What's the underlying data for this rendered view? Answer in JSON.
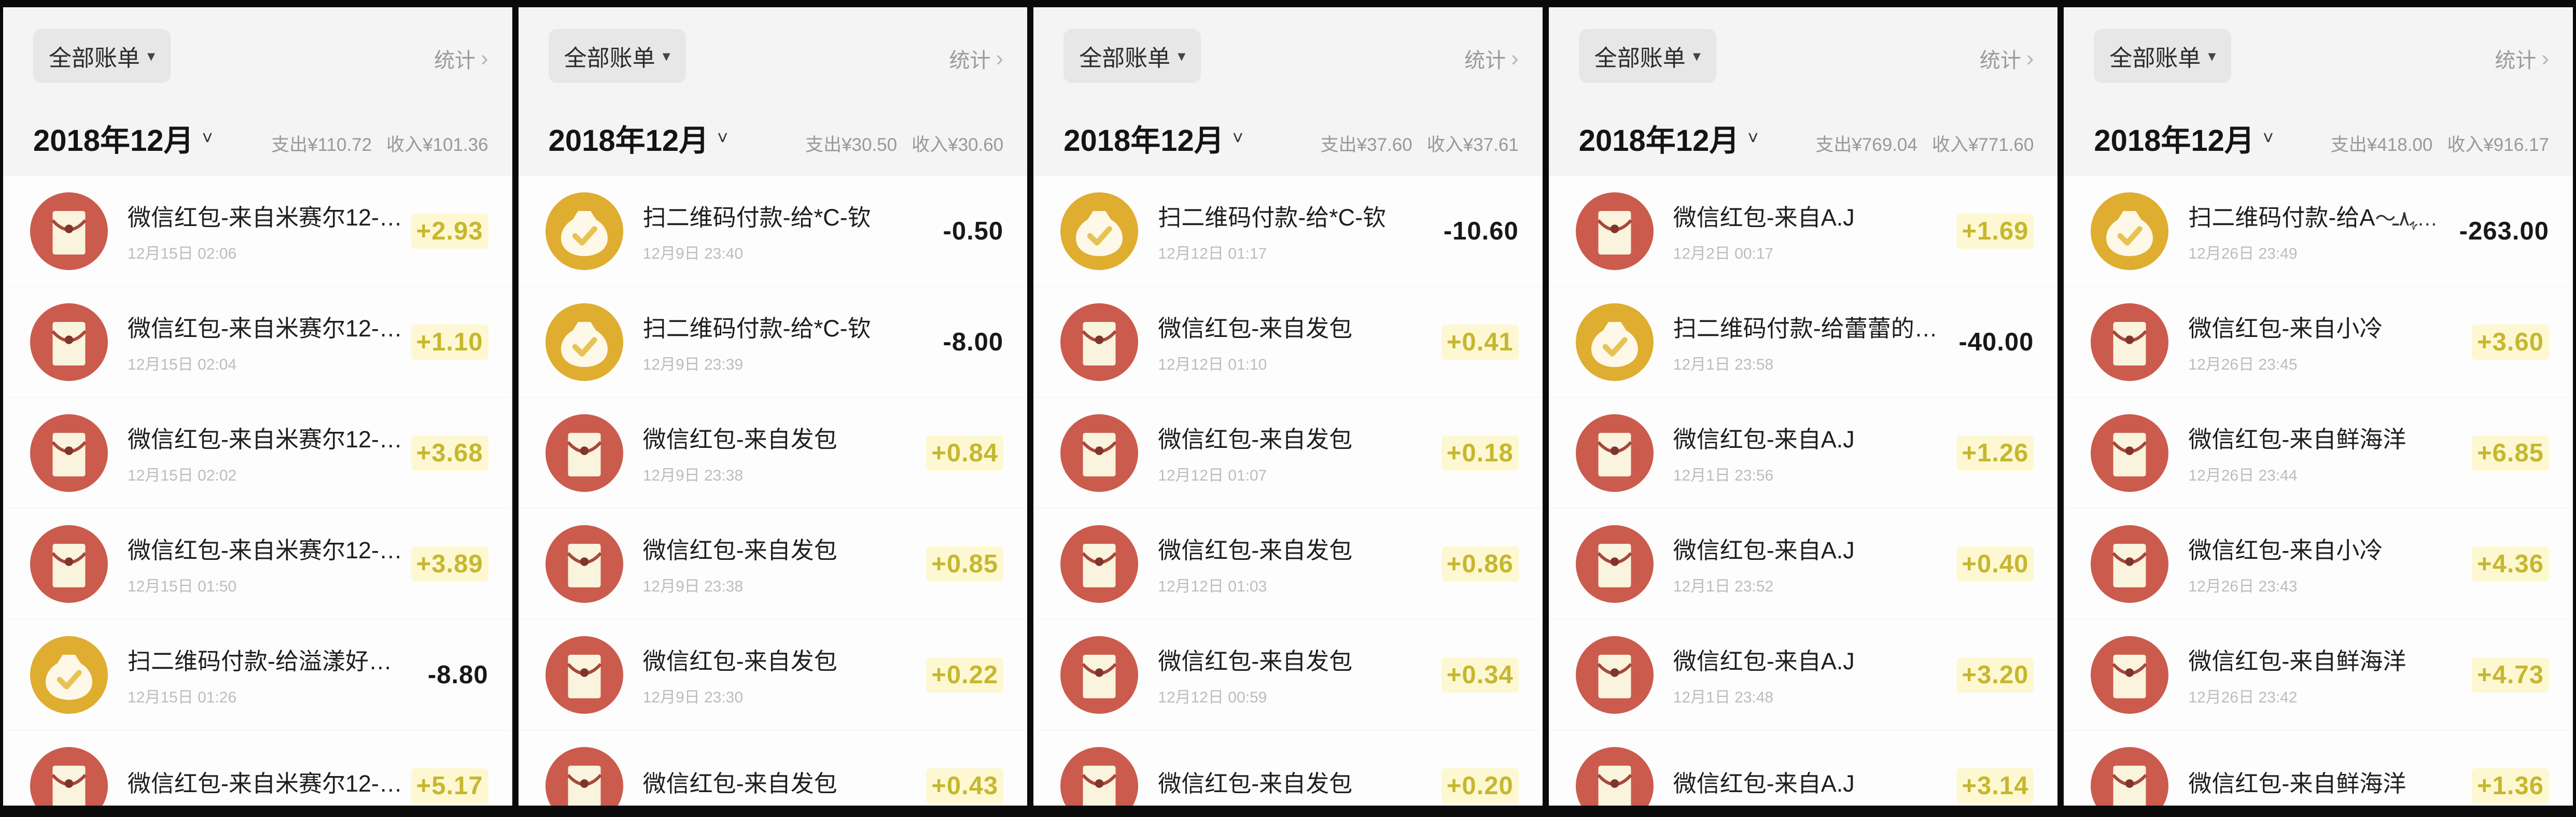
{
  "labels": {
    "filter": "全部账单",
    "filter_caret": "▾",
    "stats": "统计",
    "stats_chevron": "›",
    "month": "2018年12月",
    "month_caret": "˅"
  },
  "colors": {
    "income_amount": "#c6b72f",
    "expense_amount": "#181818",
    "red_envelope_icon": "#cb5b4d",
    "money_bag_icon": "#dfad2f",
    "frame": "#0a0a0a"
  },
  "panels": [
    {
      "expense": "支出¥110.72",
      "income": "收入¥101.36",
      "rows": [
        {
          "icon": "red",
          "title": "微信红包-来自米赛尔12-…",
          "date": "12月15日 02:06",
          "amount": "+2.93"
        },
        {
          "icon": "red",
          "title": "微信红包-来自米赛尔12-…",
          "date": "12月15日 02:04",
          "amount": "+1.10"
        },
        {
          "icon": "red",
          "title": "微信红包-来自米赛尔12-…",
          "date": "12月15日 02:02",
          "amount": "+3.68"
        },
        {
          "icon": "red",
          "title": "微信红包-来自米赛尔12-…",
          "date": "12月15日 01:50",
          "amount": "+3.89"
        },
        {
          "icon": "bag",
          "title": "扫二维码付款-给溢漾好…",
          "date": "12月15日 01:26",
          "amount": "-8.80"
        },
        {
          "icon": "red",
          "title": "微信红包-来自米赛尔12-…",
          "date": "",
          "amount": "+5.17"
        }
      ]
    },
    {
      "expense": "支出¥30.50",
      "income": "收入¥30.60",
      "rows": [
        {
          "icon": "bag",
          "title": "扫二维码付款-给*C-钦",
          "date": "12月9日 23:40",
          "amount": "-0.50"
        },
        {
          "icon": "bag",
          "title": "扫二维码付款-给*C-钦",
          "date": "12月9日 23:39",
          "amount": "-8.00"
        },
        {
          "icon": "red",
          "title": "微信红包-来自发包",
          "date": "12月9日 23:38",
          "amount": "+0.84"
        },
        {
          "icon": "red",
          "title": "微信红包-来自发包",
          "date": "12月9日 23:38",
          "amount": "+0.85"
        },
        {
          "icon": "red",
          "title": "微信红包-来自发包",
          "date": "12月9日 23:30",
          "amount": "+0.22"
        },
        {
          "icon": "red",
          "title": "微信红包-来自发包",
          "date": "",
          "amount": "+0.43"
        }
      ]
    },
    {
      "expense": "支出¥37.60",
      "income": "收入¥37.61",
      "rows": [
        {
          "icon": "bag",
          "title": "扫二维码付款-给*C-钦",
          "date": "12月12日 01:17",
          "amount": "-10.60"
        },
        {
          "icon": "red",
          "title": "微信红包-来自发包",
          "date": "12月12日 01:10",
          "amount": "+0.41"
        },
        {
          "icon": "red",
          "title": "微信红包-来自发包",
          "date": "12月12日 01:07",
          "amount": "+0.18"
        },
        {
          "icon": "red",
          "title": "微信红包-来自发包",
          "date": "12月12日 01:03",
          "amount": "+0.86"
        },
        {
          "icon": "red",
          "title": "微信红包-来自发包",
          "date": "12月12日 00:59",
          "amount": "+0.34"
        },
        {
          "icon": "red",
          "title": "微信红包-来自发包",
          "date": "",
          "amount": "+0.20"
        }
      ]
    },
    {
      "expense": "支出¥769.04",
      "income": "收入¥771.60",
      "rows": [
        {
          "icon": "red",
          "title": "微信红包-来自A.J",
          "date": "12月2日 00:17",
          "amount": "+1.69"
        },
        {
          "icon": "bag",
          "title": "扫二维码付款-给蕾蕾的…",
          "date": "12月1日 23:58",
          "amount": "-40.00"
        },
        {
          "icon": "red",
          "title": "微信红包-来自A.J",
          "date": "12月1日 23:56",
          "amount": "+1.26"
        },
        {
          "icon": "red",
          "title": "微信红包-来自A.J",
          "date": "12月1日 23:52",
          "amount": "+0.40"
        },
        {
          "icon": "red",
          "title": "微信红包-来自A.J",
          "date": "12月1日 23:48",
          "amount": "+3.20"
        },
        {
          "icon": "red",
          "title": "微信红包-来自A.J",
          "date": "",
          "amount": "+3.14"
        }
      ]
    },
    {
      "expense": "支出¥418.00",
      "income": "收入¥916.17",
      "rows": [
        {
          "icon": "bag",
          "title": "扫二维码付款-给A",
          "scribble": true,
          "date": "12月26日 23:49",
          "amount": "-263.00"
        },
        {
          "icon": "red",
          "title": "微信红包-来自小冷",
          "date": "12月26日 23:45",
          "amount": "+3.60"
        },
        {
          "icon": "red",
          "title": "微信红包-来自鲜海洋",
          "date": "12月26日 23:44",
          "amount": "+6.85"
        },
        {
          "icon": "red",
          "title": "微信红包-来自小冷",
          "date": "12月26日 23:43",
          "amount": "+4.36"
        },
        {
          "icon": "red",
          "title": "微信红包-来自鲜海洋",
          "date": "12月26日 23:42",
          "amount": "+4.73"
        },
        {
          "icon": "red",
          "title": "微信红包-来自鲜海洋",
          "date": "",
          "amount": "+1.36"
        }
      ]
    }
  ]
}
